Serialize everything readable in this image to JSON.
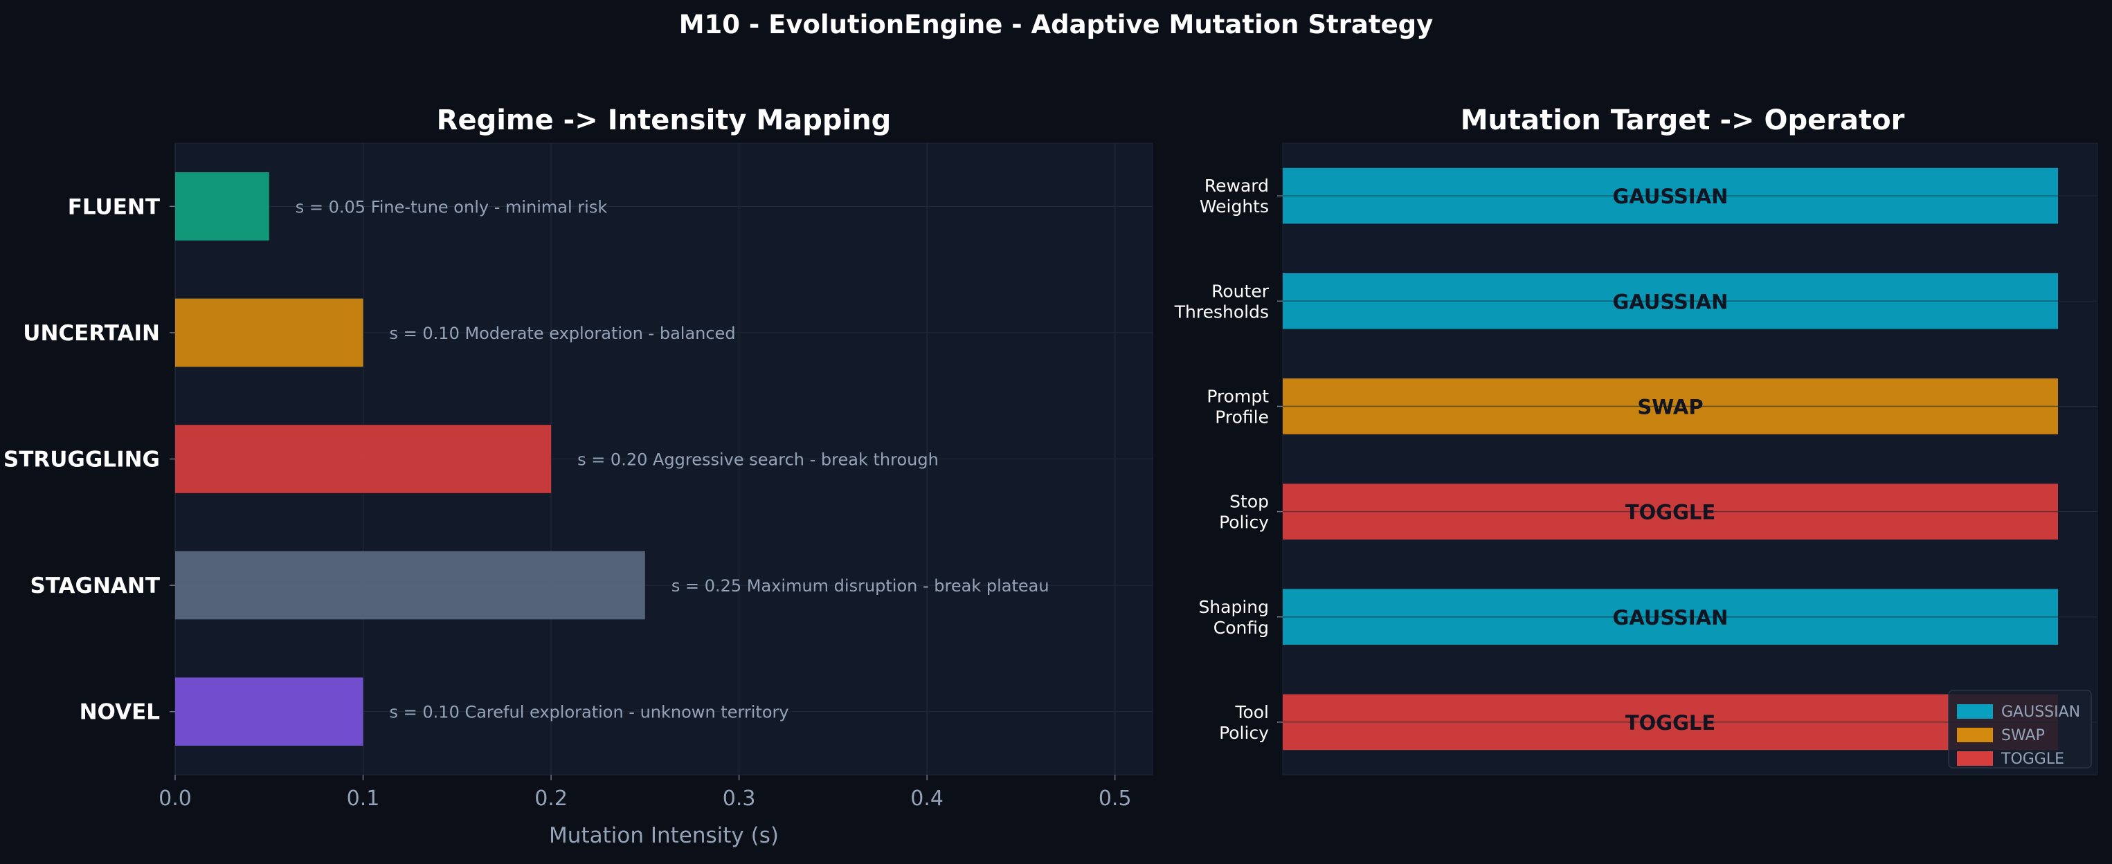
{
  "suptitle": "M10 - EvolutionEngine - Adaptive Mutation Strategy",
  "colors": {
    "background": "#0b0f17",
    "panel": "#121928",
    "grid": "#1f2738",
    "text": "#ffffff",
    "muted": "#94a3b8"
  },
  "chart_data": [
    {
      "type": "bar",
      "orientation": "horizontal",
      "title": "Regime -> Intensity Mapping",
      "xlabel": "Mutation Intensity (s)",
      "ylabel": "",
      "xlim": [
        0,
        0.52
      ],
      "xticks": [
        "0.0",
        "0.1",
        "0.2",
        "0.3",
        "0.4",
        "0.5"
      ],
      "grid": true,
      "categories": [
        "FLUENT",
        "UNCERTAIN",
        "STRUGGLING",
        "STAGNANT",
        "NOVEL"
      ],
      "values": [
        0.05,
        0.1,
        0.2,
        0.25,
        0.1
      ],
      "bar_colors": [
        "#10a37f",
        "#d4890f",
        "#d63d3d",
        "#596780",
        "#7a52dc"
      ],
      "annotations": [
        "s = 0.05   Fine-tune only - minimal risk",
        "s = 0.10   Moderate exploration - balanced",
        "s = 0.20   Aggressive search - break through",
        "s = 0.25   Maximum disruption - break plateau",
        "s = 0.10   Careful exploration - unknown territory"
      ]
    },
    {
      "type": "bar",
      "orientation": "horizontal",
      "title": "Mutation Target -> Operator",
      "xlabel": "",
      "ylabel": "",
      "grid": true,
      "categories": [
        [
          "Reward",
          "Weights"
        ],
        [
          "Router",
          "Thresholds"
        ],
        [
          "Prompt",
          "Profile"
        ],
        [
          "Stop",
          "Policy"
        ],
        [
          "Shaping",
          "Config"
        ],
        [
          "Tool",
          "Policy"
        ]
      ],
      "values": [
        1,
        1,
        1,
        1,
        1,
        1
      ],
      "operators": [
        "GAUSSIAN",
        "GAUSSIAN",
        "SWAP",
        "TOGGLE",
        "GAUSSIAN",
        "TOGGLE"
      ],
      "operator_colors": {
        "GAUSSIAN": "#099fbe",
        "SWAP": "#d4890f",
        "TOGGLE": "#d63d3d"
      },
      "legend": {
        "placement": "lower-right",
        "entries": [
          "GAUSSIAN",
          "SWAP",
          "TOGGLE"
        ]
      }
    }
  ]
}
